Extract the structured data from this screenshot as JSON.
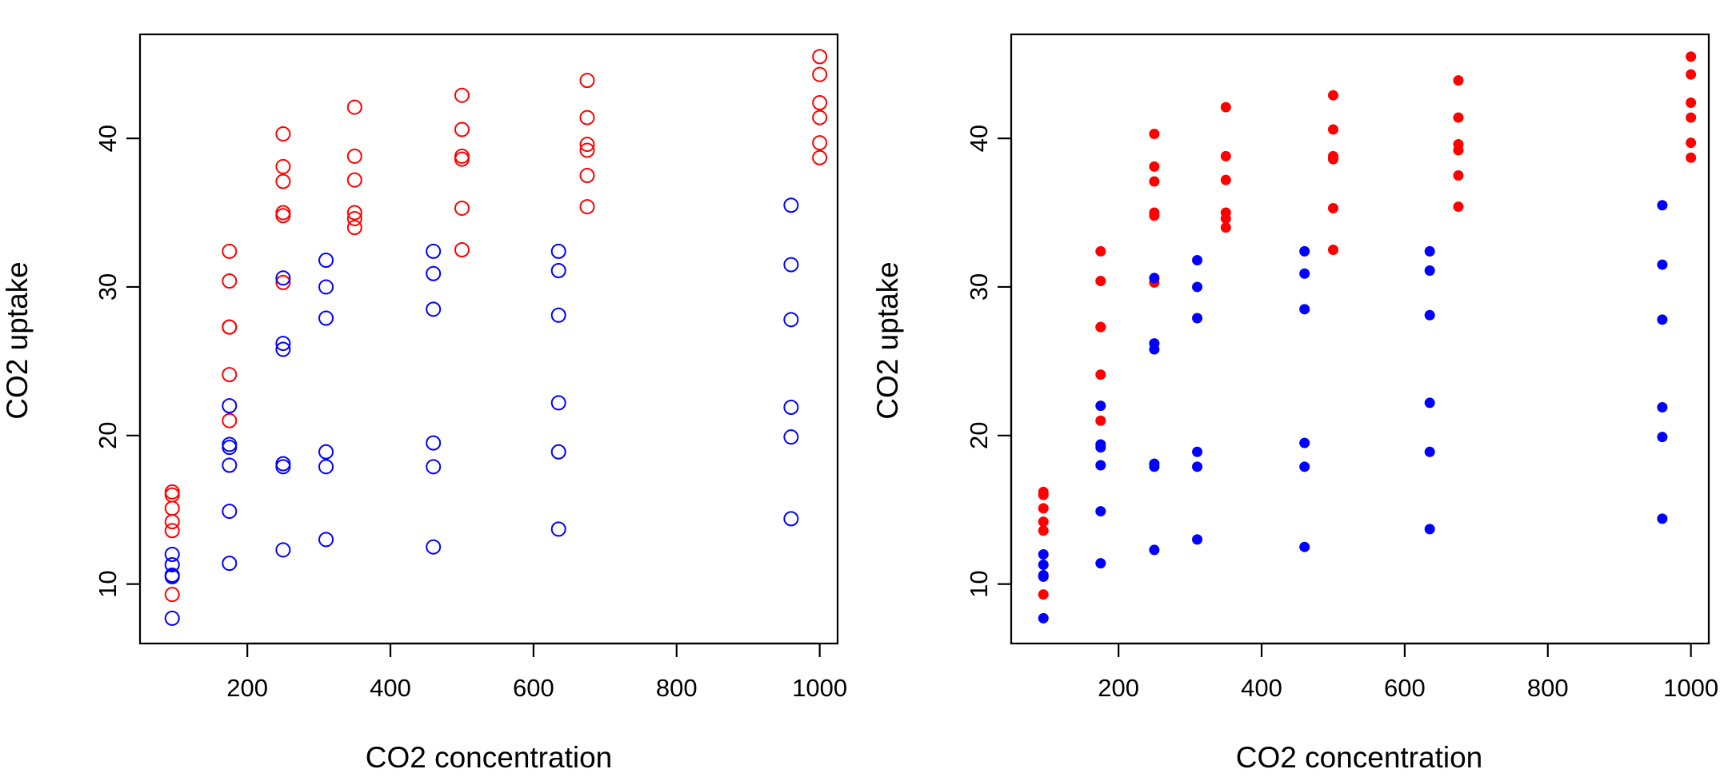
{
  "chart_data": [
    {
      "type": "scatter",
      "xlabel": "CO2 concentration",
      "ylabel": "CO2 uptake",
      "xlim": [
        50,
        1025
      ],
      "ylim": [
        6,
        47
      ],
      "x_ticks": [
        200,
        400,
        600,
        800,
        1000
      ],
      "y_ticks": [
        10,
        20,
        30,
        40
      ],
      "grid": false,
      "marker": "open-circle",
      "series": [
        {
          "color": "#ff0000",
          "points": [
            [
              95,
              16.0
            ],
            [
              95,
              13.6
            ],
            [
              95,
              16.2
            ],
            [
              95,
              14.2
            ],
            [
              95,
              15.1
            ],
            [
              95,
              9.3
            ],
            [
              175,
              30.4
            ],
            [
              175,
              27.3
            ],
            [
              175,
              24.1
            ],
            [
              175,
              32.4
            ],
            [
              175,
              27.3
            ],
            [
              175,
              21.0
            ],
            [
              250,
              34.8
            ],
            [
              250,
              37.1
            ],
            [
              250,
              30.3
            ],
            [
              250,
              40.3
            ],
            [
              250,
              35.0
            ],
            [
              250,
              38.1
            ],
            [
              350,
              37.2
            ],
            [
              350,
              35.0
            ],
            [
              350,
              34.6
            ],
            [
              350,
              42.1
            ],
            [
              350,
              38.8
            ],
            [
              350,
              34.0
            ],
            [
              500,
              35.3
            ],
            [
              500,
              38.8
            ],
            [
              500,
              32.5
            ],
            [
              500,
              42.9
            ],
            [
              500,
              38.6
            ],
            [
              500,
              40.6
            ],
            [
              675,
              39.2
            ],
            [
              675,
              37.5
            ],
            [
              675,
              35.4
            ],
            [
              675,
              43.9
            ],
            [
              675,
              39.6
            ],
            [
              675,
              41.4
            ],
            [
              1000,
              39.7
            ],
            [
              1000,
              42.4
            ],
            [
              1000,
              38.7
            ],
            [
              1000,
              45.5
            ],
            [
              1000,
              41.4
            ],
            [
              1000,
              44.3
            ]
          ]
        },
        {
          "color": "#0000ff",
          "points": [
            [
              95,
              12.0
            ],
            [
              95,
              11.3
            ],
            [
              95,
              10.6
            ],
            [
              95,
              10.5
            ],
            [
              95,
              7.7
            ],
            [
              175,
              22.0
            ],
            [
              175,
              19.4
            ],
            [
              175,
              19.2
            ],
            [
              175,
              18.0
            ],
            [
              175,
              14.9
            ],
            [
              175,
              11.4
            ],
            [
              250,
              30.6
            ],
            [
              250,
              26.2
            ],
            [
              250,
              25.8
            ],
            [
              250,
              18.1
            ],
            [
              250,
              17.9
            ],
            [
              250,
              12.3
            ],
            [
              310,
              31.8
            ],
            [
              310,
              30.0
            ],
            [
              310,
              27.9
            ],
            [
              310,
              18.9
            ],
            [
              310,
              17.9
            ],
            [
              310,
              13.0
            ],
            [
              460,
              32.4
            ],
            [
              460,
              30.9
            ],
            [
              460,
              28.5
            ],
            [
              460,
              19.5
            ],
            [
              460,
              17.9
            ],
            [
              460,
              12.5
            ],
            [
              635,
              32.4
            ],
            [
              635,
              31.1
            ],
            [
              635,
              28.1
            ],
            [
              635,
              22.2
            ],
            [
              635,
              18.9
            ],
            [
              635,
              13.7
            ],
            [
              960,
              35.5
            ],
            [
              960,
              31.5
            ],
            [
              960,
              27.8
            ],
            [
              960,
              21.9
            ],
            [
              960,
              19.9
            ],
            [
              960,
              14.4
            ]
          ]
        }
      ]
    },
    {
      "type": "scatter",
      "xlabel": "CO2 concentration",
      "ylabel": "CO2 uptake",
      "xlim": [
        50,
        1025
      ],
      "ylim": [
        6,
        47
      ],
      "x_ticks": [
        200,
        400,
        600,
        800,
        1000
      ],
      "y_ticks": [
        10,
        20,
        30,
        40
      ],
      "grid": false,
      "marker": "filled-circle",
      "series": [
        {
          "color": "#ff0000",
          "points": [
            [
              95,
              16.0
            ],
            [
              95,
              13.6
            ],
            [
              95,
              16.2
            ],
            [
              95,
              14.2
            ],
            [
              95,
              15.1
            ],
            [
              95,
              9.3
            ],
            [
              175,
              30.4
            ],
            [
              175,
              27.3
            ],
            [
              175,
              24.1
            ],
            [
              175,
              32.4
            ],
            [
              175,
              27.3
            ],
            [
              175,
              21.0
            ],
            [
              250,
              34.8
            ],
            [
              250,
              37.1
            ],
            [
              250,
              30.3
            ],
            [
              250,
              40.3
            ],
            [
              250,
              35.0
            ],
            [
              250,
              38.1
            ],
            [
              350,
              37.2
            ],
            [
              350,
              35.0
            ],
            [
              350,
              34.6
            ],
            [
              350,
              42.1
            ],
            [
              350,
              38.8
            ],
            [
              350,
              34.0
            ],
            [
              500,
              35.3
            ],
            [
              500,
              38.8
            ],
            [
              500,
              32.5
            ],
            [
              500,
              42.9
            ],
            [
              500,
              38.6
            ],
            [
              500,
              40.6
            ],
            [
              675,
              39.2
            ],
            [
              675,
              37.5
            ],
            [
              675,
              35.4
            ],
            [
              675,
              43.9
            ],
            [
              675,
              39.6
            ],
            [
              675,
              41.4
            ],
            [
              1000,
              39.7
            ],
            [
              1000,
              42.4
            ],
            [
              1000,
              38.7
            ],
            [
              1000,
              45.5
            ],
            [
              1000,
              41.4
            ],
            [
              1000,
              44.3
            ]
          ]
        },
        {
          "color": "#0000ff",
          "points": [
            [
              95,
              12.0
            ],
            [
              95,
              11.3
            ],
            [
              95,
              10.6
            ],
            [
              95,
              10.5
            ],
            [
              95,
              7.7
            ],
            [
              175,
              22.0
            ],
            [
              175,
              19.4
            ],
            [
              175,
              19.2
            ],
            [
              175,
              18.0
            ],
            [
              175,
              14.9
            ],
            [
              175,
              11.4
            ],
            [
              250,
              30.6
            ],
            [
              250,
              26.2
            ],
            [
              250,
              25.8
            ],
            [
              250,
              18.1
            ],
            [
              250,
              17.9
            ],
            [
              250,
              12.3
            ],
            [
              310,
              31.8
            ],
            [
              310,
              30.0
            ],
            [
              310,
              27.9
            ],
            [
              310,
              18.9
            ],
            [
              310,
              17.9
            ],
            [
              310,
              13.0
            ],
            [
              460,
              32.4
            ],
            [
              460,
              30.9
            ],
            [
              460,
              28.5
            ],
            [
              460,
              19.5
            ],
            [
              460,
              17.9
            ],
            [
              460,
              12.5
            ],
            [
              635,
              32.4
            ],
            [
              635,
              31.1
            ],
            [
              635,
              28.1
            ],
            [
              635,
              22.2
            ],
            [
              635,
              18.9
            ],
            [
              635,
              13.7
            ],
            [
              960,
              35.5
            ],
            [
              960,
              31.5
            ],
            [
              960,
              27.8
            ],
            [
              960,
              21.9
            ],
            [
              960,
              19.9
            ],
            [
              960,
              14.4
            ]
          ]
        }
      ]
    }
  ]
}
